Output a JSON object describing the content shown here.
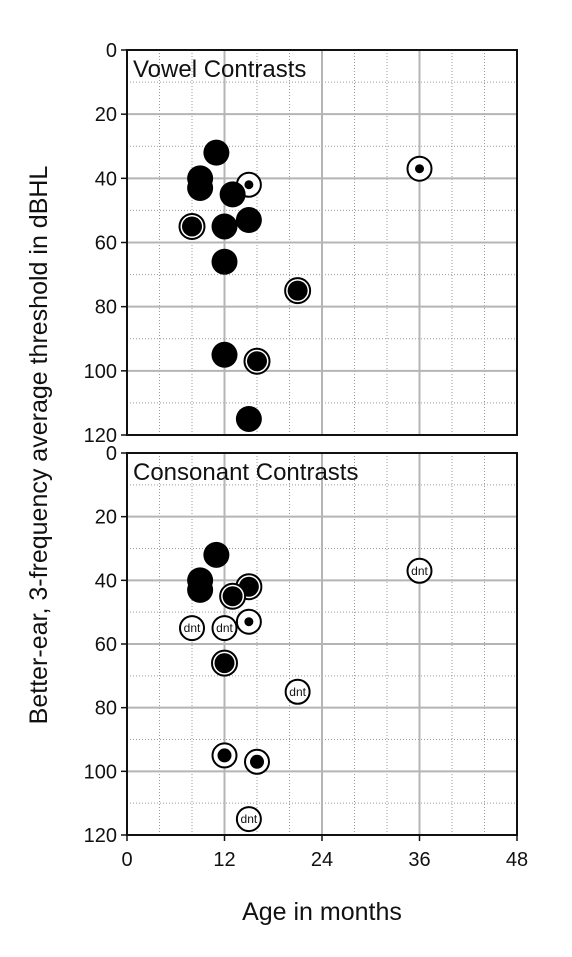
{
  "chart_data": [
    {
      "type": "scatter",
      "title": "Vowel Contrasts",
      "xlabel": "Age in months",
      "ylabel": "Better-ear, 3-frequency average threshold in dBHL",
      "xlim": [
        0,
        48
      ],
      "ylim": [
        0,
        120
      ],
      "y_inverted": true,
      "x_ticks": [
        0,
        12,
        24,
        36,
        48
      ],
      "y_ticks": [
        0,
        20,
        40,
        60,
        80,
        100,
        120
      ],
      "x_tick_labels": [
        "0",
        "12",
        "24",
        "36",
        "48"
      ],
      "y_tick_labels": [
        "0",
        "20",
        "40",
        "60",
        "80",
        "100",
        "120"
      ],
      "grid": true,
      "points": [
        {
          "x": 11,
          "y": 32,
          "marker": "filled"
        },
        {
          "x": 9,
          "y": 40,
          "marker": "filled"
        },
        {
          "x": 9,
          "y": 43,
          "marker": "filled"
        },
        {
          "x": 15,
          "y": 42,
          "marker": "ringed-dot"
        },
        {
          "x": 13,
          "y": 45,
          "marker": "filled"
        },
        {
          "x": 15,
          "y": 53,
          "marker": "filled"
        },
        {
          "x": 8,
          "y": 55,
          "marker": "ringed-filled"
        },
        {
          "x": 12,
          "y": 55,
          "marker": "filled"
        },
        {
          "x": 12,
          "y": 66,
          "marker": "filled"
        },
        {
          "x": 21,
          "y": 75,
          "marker": "ringed-filled"
        },
        {
          "x": 36,
          "y": 37,
          "marker": "ringed-dot"
        },
        {
          "x": 12,
          "y": 95,
          "marker": "filled"
        },
        {
          "x": 16,
          "y": 97,
          "marker": "ringed-filled"
        },
        {
          "x": 15,
          "y": 115,
          "marker": "filled"
        }
      ]
    },
    {
      "type": "scatter",
      "title": "Consonant Contrasts",
      "xlabel": "Age in months",
      "ylabel": "Better-ear, 3-frequency average threshold in dBHL",
      "xlim": [
        0,
        48
      ],
      "ylim": [
        0,
        120
      ],
      "y_inverted": true,
      "x_ticks": [
        0,
        12,
        24,
        36,
        48
      ],
      "y_ticks": [
        0,
        20,
        40,
        60,
        80,
        100,
        120
      ],
      "x_tick_labels": [
        "0",
        "12",
        "24",
        "36",
        "48"
      ],
      "y_tick_labels": [
        "0",
        "20",
        "40",
        "60",
        "80",
        "100",
        "120"
      ],
      "grid": true,
      "points": [
        {
          "x": 11,
          "y": 32,
          "marker": "filled"
        },
        {
          "x": 9,
          "y": 40,
          "marker": "filled"
        },
        {
          "x": 9,
          "y": 43,
          "marker": "filled"
        },
        {
          "x": 15,
          "y": 42,
          "marker": "ringed-filled"
        },
        {
          "x": 13,
          "y": 45,
          "marker": "ringed-filled"
        },
        {
          "x": 15,
          "y": 53,
          "marker": "ringed-dot"
        },
        {
          "x": 8,
          "y": 55,
          "marker": "dnt",
          "label": "dnt"
        },
        {
          "x": 12,
          "y": 55,
          "marker": "dnt",
          "label": "dnt"
        },
        {
          "x": 12,
          "y": 66,
          "marker": "ringed-filled"
        },
        {
          "x": 21,
          "y": 75,
          "marker": "dnt",
          "label": "dnt"
        },
        {
          "x": 36,
          "y": 37,
          "marker": "dnt",
          "label": "dnt"
        },
        {
          "x": 12,
          "y": 95,
          "marker": "ringed-dot-large"
        },
        {
          "x": 16,
          "y": 97,
          "marker": "ringed-dot-large"
        },
        {
          "x": 15,
          "y": 115,
          "marker": "dnt",
          "label": "dnt"
        }
      ]
    }
  ]
}
